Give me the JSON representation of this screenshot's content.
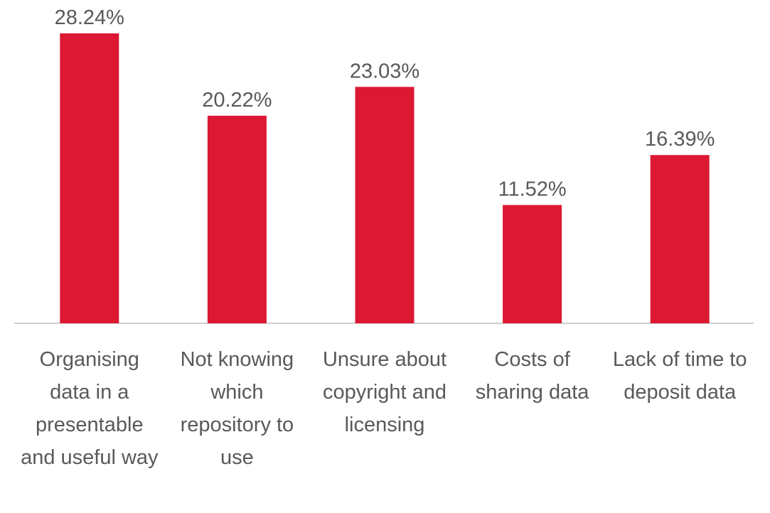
{
  "chart_data": {
    "type": "bar",
    "categories": [
      "Organising data in a presentable and useful way",
      "Not knowing which repository to use",
      "Unsure about copyright and licensing",
      "Costs of sharing data",
      "Lack of time to deposit data"
    ],
    "values": [
      28.24,
      20.22,
      23.03,
      11.52,
      16.39
    ],
    "value_labels": [
      "28.24%",
      "20.22%",
      "23.03%",
      "11.52%",
      "16.39%"
    ],
    "color": "#dc1832"
  }
}
